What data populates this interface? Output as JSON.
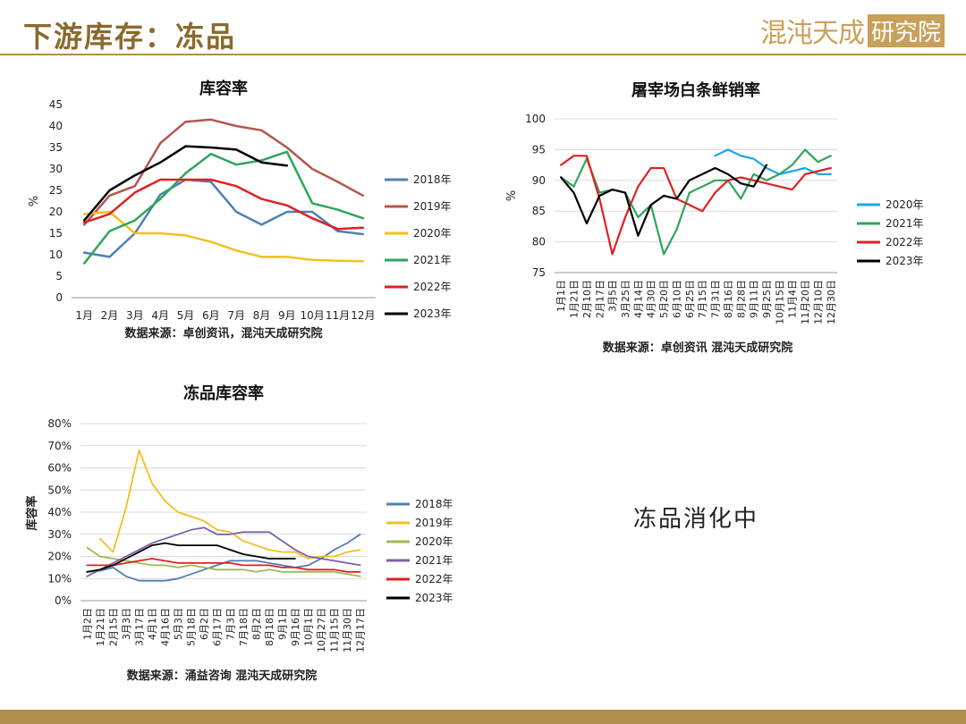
{
  "page": {
    "title": "下游库存：冻品",
    "logo_text": "混沌天成",
    "logo_box_text": "研究院",
    "note": "冻品消化中",
    "colors": {
      "title": "#8a6a2c",
      "rule": "#b08d4d",
      "logo": "#c9a05a"
    }
  },
  "chart_data": [
    {
      "type": "line",
      "title": "库容率",
      "ylabel": "%",
      "source": "数据来源：卓创资讯，混沌天成研究院",
      "ylim": [
        0,
        45
      ],
      "yticks": [
        0,
        5,
        10,
        15,
        20,
        25,
        30,
        35,
        40,
        45
      ],
      "tick_suffix": "",
      "grid": false,
      "legend": "right",
      "categories": [
        "1月",
        "2月",
        "3月",
        "4月",
        "5月",
        "6月",
        "7月",
        "8月",
        "9月",
        "10月",
        "11月",
        "12月"
      ],
      "series": [
        {
          "name": "2018年",
          "color": "#4f7fb5",
          "values": [
            10.5,
            9.5,
            15,
            24,
            27.5,
            27,
            20,
            17,
            20,
            20,
            15.5,
            14.8
          ]
        },
        {
          "name": "2019年",
          "color": "#b4564d",
          "values": [
            17,
            23.8,
            26,
            36,
            41,
            41.5,
            40,
            39,
            35,
            30,
            27,
            23.8
          ]
        },
        {
          "name": "2020年",
          "color": "#f2c01e",
          "values": [
            19.5,
            20,
            15,
            15,
            14.5,
            13,
            11,
            9.5,
            9.5,
            8.8,
            8.6,
            8.5
          ]
        },
        {
          "name": "2021年",
          "color": "#2ea55a",
          "values": [
            8,
            15.5,
            18,
            23,
            29,
            33.5,
            31,
            32,
            34,
            22,
            20.5,
            18.5
          ]
        },
        {
          "name": "2022年",
          "color": "#e02020",
          "values": [
            17.5,
            19.5,
            24.5,
            27.5,
            27.5,
            27.5,
            26,
            23,
            21.5,
            18.5,
            16,
            16.3
          ]
        },
        {
          "name": "2023年",
          "color": "#000000",
          "values": [
            18,
            25,
            28.5,
            31.5,
            35.3,
            35,
            34.5,
            31.5,
            30.8,
            null,
            null,
            null
          ]
        }
      ]
    },
    {
      "type": "line",
      "title": "屠宰场白条鲜销率",
      "ylabel": "%",
      "source": "数据来源：卓创资讯 混沌天成研究院",
      "ylim": [
        75,
        100
      ],
      "yticks": [
        75,
        80,
        85,
        90,
        95,
        100
      ],
      "tick_suffix": "",
      "grid": true,
      "legend": "right",
      "categories": [
        "1月1日",
        "1月21日",
        "2月10日",
        "2月17日",
        "3月5日",
        "3月25日",
        "4月14日",
        "4月30日",
        "5月20日",
        "6月10日",
        "6月25日",
        "7月15日",
        "7月31日",
        "8月16日",
        "8月28日",
        "9月11日",
        "9月25日",
        "10月15日",
        "11月4日",
        "11月20日",
        "12月10日",
        "12月30日"
      ],
      "series": [
        {
          "name": "2020年",
          "color": "#1ea7e8",
          "values": [
            null,
            null,
            null,
            null,
            null,
            null,
            null,
            null,
            null,
            null,
            null,
            null,
            94,
            95,
            94,
            93.5,
            92,
            91,
            91.5,
            92,
            91,
            91
          ]
        },
        {
          "name": "2021年",
          "color": "#2ea55a",
          "values": [
            90.5,
            89,
            93.5,
            88,
            88.5,
            88,
            84,
            86,
            78,
            82,
            88,
            89,
            90,
            90,
            87,
            91,
            90,
            91,
            92.5,
            95,
            93,
            94
          ]
        },
        {
          "name": "2022年",
          "color": "#e02020",
          "values": [
            92.5,
            94,
            94,
            87,
            78,
            84,
            89,
            92,
            92,
            87,
            86,
            85,
            88,
            90,
            90.5,
            90,
            89.5,
            89,
            88.5,
            91,
            91.5,
            92
          ]
        },
        {
          "name": "2023年",
          "color": "#000000",
          "values": [
            90.5,
            88,
            83,
            87.5,
            88.5,
            88,
            81,
            86,
            87.5,
            87,
            90,
            91,
            92,
            91,
            89.5,
            89,
            92.5,
            null,
            null,
            null,
            null,
            null
          ]
        }
      ]
    },
    {
      "type": "line",
      "title": "冻品库容率",
      "ylabel": "库容率",
      "source": "数据来源：涌益咨询 混沌天成研究院",
      "ylim": [
        0,
        80
      ],
      "yticks": [
        0,
        10,
        20,
        30,
        40,
        50,
        60,
        70,
        80
      ],
      "tick_suffix": "%",
      "grid": true,
      "legend": "right",
      "categories": [
        "1月2日",
        "1月21日",
        "2月15日",
        "3月3日",
        "3月17日",
        "4月1日",
        "4月16日",
        "5月3日",
        "5月18日",
        "6月2日",
        "6月17日",
        "7月3日",
        "7月18日",
        "8月2日",
        "8月18日",
        "9月1日",
        "9月16日",
        "10月1日",
        "10月27日",
        "11月15日",
        "11月30日",
        "12月17日"
      ],
      "series": [
        {
          "name": "2018年",
          "color": "#4f7fb5",
          "values": [
            13,
            13.5,
            15,
            11,
            9,
            9,
            9,
            10,
            12,
            14,
            16,
            18,
            18,
            18,
            17,
            16,
            15,
            16,
            19,
            23,
            26,
            30
          ]
        },
        {
          "name": "2019年",
          "color": "#f2c01e",
          "values": [
            null,
            28,
            22,
            42,
            68,
            53,
            45,
            40,
            38,
            36,
            32,
            31,
            27,
            25,
            23,
            22,
            22,
            19,
            20,
            20,
            22,
            23
          ]
        },
        {
          "name": "2020年",
          "color": "#9bbb59",
          "values": [
            24,
            20,
            19,
            18,
            17,
            16,
            16,
            15,
            16,
            15,
            14,
            14,
            14,
            13,
            14,
            13,
            13,
            13,
            13,
            13,
            12,
            11
          ]
        },
        {
          "name": "2021年",
          "color": "#7e5fa8",
          "values": [
            11,
            14,
            17,
            20,
            23,
            26,
            28,
            30,
            32,
            33,
            30,
            30,
            31,
            31,
            31,
            27,
            23,
            20,
            19,
            18,
            17,
            16
          ]
        },
        {
          "name": "2022年",
          "color": "#e02020",
          "values": [
            16,
            16,
            16,
            17,
            18,
            19,
            18,
            17,
            17,
            17,
            17,
            17,
            16,
            16,
            16,
            15,
            15,
            14,
            14,
            14,
            13,
            13
          ]
        },
        {
          "name": "2023年",
          "color": "#000000",
          "values": [
            13,
            14,
            16,
            19,
            22,
            25,
            26,
            25,
            25,
            25,
            25,
            23,
            21,
            20,
            19,
            19,
            19,
            null,
            null,
            null,
            null,
            null
          ]
        }
      ]
    }
  ]
}
